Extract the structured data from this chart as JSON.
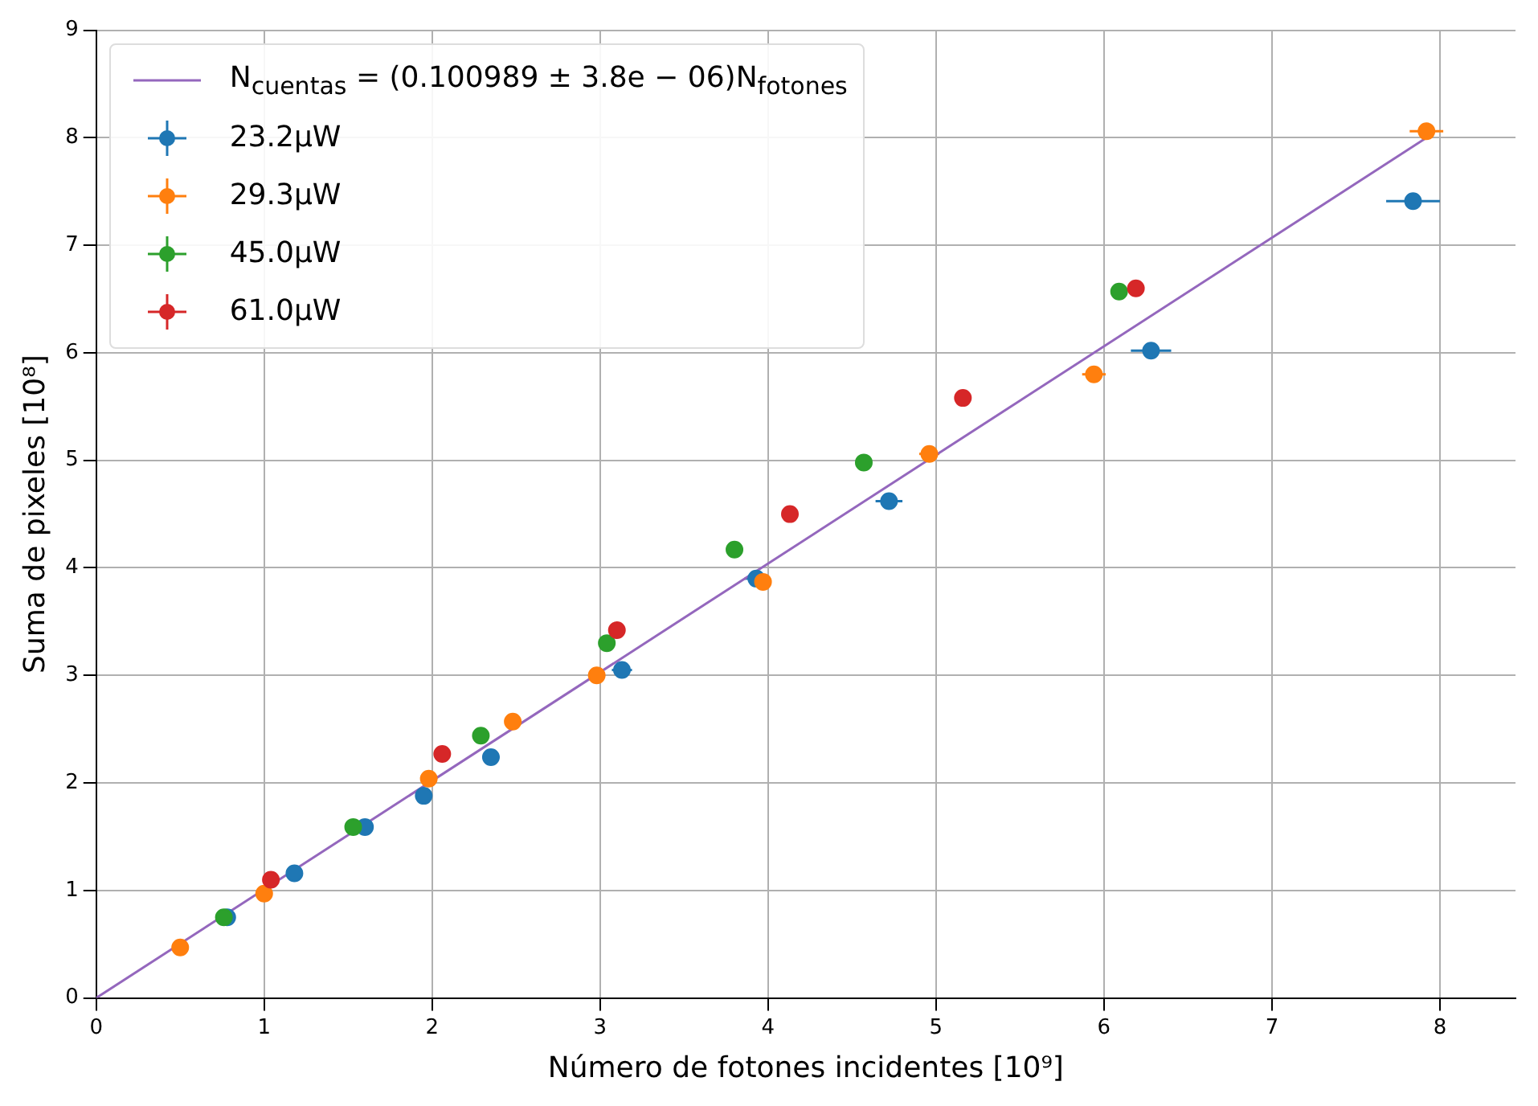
{
  "chart_data": {
    "type": "scatter",
    "xlabel": "Número de fotones incidentes [10⁹]",
    "ylabel": "Suma de pixeles [10⁸]",
    "xlim": [
      0,
      8.45
    ],
    "ylim": [
      0,
      9
    ],
    "xticks": [
      0,
      1,
      2,
      3,
      4,
      5,
      6,
      7,
      8
    ],
    "yticks": [
      0,
      1,
      2,
      3,
      4,
      5,
      6,
      7,
      8,
      9
    ],
    "grid": true,
    "legend": "top left",
    "marker": "circle",
    "series": [
      {
        "name": "N$_{cuentas}$ = (0.100989 ± 3.8e − 06)N$_{fotones}$",
        "type": "line",
        "color": "#9467bd",
        "x": [
          0,
          7.95
        ],
        "values": [
          0,
          8.03
        ],
        "line_style": "solid",
        "marker": "none"
      },
      {
        "name": "23.2μW",
        "color": "#1f77b4",
        "x": [
          0.78,
          1.18,
          1.6,
          1.95,
          2.35,
          3.13,
          3.93,
          4.72,
          6.28,
          7.84
        ],
        "values": [
          0.75,
          1.16,
          1.59,
          1.88,
          2.24,
          3.05,
          3.9,
          4.62,
          6.02,
          7.41
        ],
        "xerrors": [
          0.02,
          0.02,
          0.03,
          0.04,
          0.05,
          0.06,
          0.07,
          0.08,
          0.12,
          0.16
        ]
      },
      {
        "name": "29.3μW",
        "color": "#ff7f0e",
        "x": [
          0.5,
          1.0,
          1.98,
          2.48,
          2.98,
          3.97,
          4.96,
          5.94,
          7.92
        ],
        "values": [
          0.47,
          0.97,
          2.04,
          2.57,
          3.0,
          3.87,
          5.06,
          5.8,
          8.06
        ],
        "xerrors": [
          0.01,
          0.02,
          0.03,
          0.04,
          0.04,
          0.05,
          0.06,
          0.07,
          0.1
        ]
      },
      {
        "name": "45.0μW",
        "color": "#2ca02c",
        "x": [
          0.76,
          1.53,
          2.29,
          3.04,
          3.8,
          4.57,
          6.09
        ],
        "values": [
          0.75,
          1.59,
          2.44,
          3.3,
          4.17,
          4.98,
          6.57
        ]
      },
      {
        "name": "61.0μW",
        "color": "#d62728",
        "x": [
          1.04,
          2.06,
          3.1,
          4.13,
          5.16,
          6.19
        ],
        "values": [
          1.1,
          2.27,
          3.42,
          4.5,
          5.58,
          6.6
        ]
      }
    ]
  }
}
